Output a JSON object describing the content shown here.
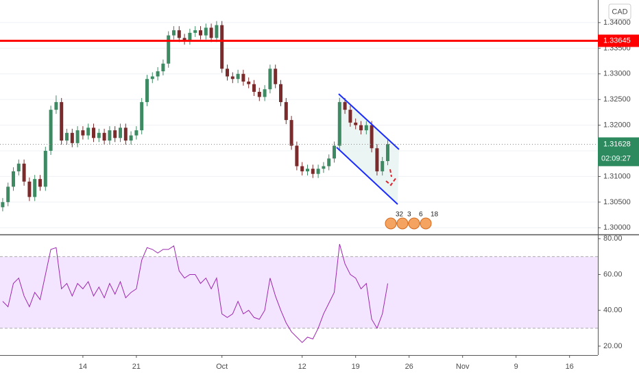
{
  "chart_data": {
    "type": "candlestick",
    "currency": "CAD",
    "categories": [
      null,
      null,
      null,
      null,
      null,
      null,
      null,
      null,
      null,
      null,
      null,
      null,
      null,
      null,
      null,
      "14",
      null,
      null,
      null,
      null,
      null,
      null,
      null,
      null,
      null,
      "21",
      null,
      null,
      null,
      null,
      null,
      null,
      null,
      null,
      null,
      null,
      null,
      null,
      null,
      null,
      null,
      "Oct",
      null,
      null,
      null,
      null,
      null,
      null,
      null,
      null,
      null,
      null,
      null,
      null,
      null,
      null,
      "12",
      null,
      null,
      null,
      null,
      null,
      null,
      null,
      null,
      null,
      "19",
      null,
      null,
      null,
      null,
      null,
      null,
      null,
      null,
      null,
      "26",
      null,
      null,
      null,
      null,
      null,
      null,
      null,
      null,
      null,
      "Nov",
      null,
      null,
      null,
      null,
      null,
      null,
      null,
      null,
      null,
      "9",
      null,
      null,
      null,
      null,
      null,
      null,
      null,
      null,
      null,
      "16",
      null,
      null,
      null,
      null,
      null
    ],
    "open": [
      1.304,
      1.305,
      1.308,
      1.311,
      1.3125,
      1.309,
      1.306,
      1.3095,
      1.308,
      1.315,
      1.323,
      1.3245,
      1.317,
      1.3185,
      1.3165,
      1.319,
      1.318,
      1.3195,
      1.3175,
      1.3185,
      1.317,
      1.319,
      1.3175,
      1.3195,
      1.317,
      1.318,
      1.319,
      1.3245,
      1.329,
      1.3295,
      1.3305,
      1.332,
      1.3375,
      1.3385,
      1.337,
      1.3365,
      1.338,
      1.3385,
      1.3375,
      1.339,
      1.337,
      1.3395,
      1.331,
      1.3295,
      1.329,
      1.33,
      1.3285,
      1.328,
      1.3265,
      1.3255,
      1.327,
      1.331,
      1.328,
      1.3245,
      1.321,
      1.316,
      1.312,
      1.311,
      1.3115,
      1.3105,
      1.3115,
      1.312,
      1.3135,
      1.316,
      1.3245,
      1.323,
      1.3205,
      1.32,
      1.319,
      1.32,
      1.3155,
      1.311,
      1.313,
      null,
      null,
      null,
      null,
      null,
      null,
      null,
      null,
      null,
      null,
      null,
      null,
      null,
      null,
      null,
      null,
      null,
      null,
      null,
      null,
      null,
      null,
      null,
      null,
      null,
      null,
      null,
      null,
      null,
      null,
      null,
      null,
      null,
      null,
      null,
      null,
      null,
      null,
      null
    ],
    "high": [
      1.3058,
      1.3088,
      1.3118,
      1.3133,
      1.3133,
      1.3098,
      1.3103,
      1.3103,
      1.3158,
      1.3238,
      1.3258,
      1.3253,
      1.3193,
      1.3193,
      1.3198,
      1.3198,
      1.3203,
      1.3203,
      1.3193,
      1.3193,
      1.3198,
      1.3198,
      1.3203,
      1.3203,
      1.3188,
      1.3198,
      1.3253,
      1.3298,
      1.3303,
      1.3313,
      1.3328,
      1.3383,
      1.3393,
      1.3393,
      1.3378,
      1.3388,
      1.3393,
      1.3393,
      1.3398,
      1.3398,
      1.3403,
      1.3403,
      1.3318,
      1.3303,
      1.3308,
      1.3308,
      1.3293,
      1.3288,
      1.3273,
      1.3278,
      1.3318,
      1.3318,
      1.3288,
      1.3253,
      1.3218,
      1.3168,
      1.3128,
      1.3123,
      1.3123,
      1.3123,
      1.3128,
      1.3143,
      1.3168,
      1.3253,
      1.3253,
      1.3238,
      1.3213,
      1.3208,
      1.3208,
      1.3208,
      1.3163,
      1.3138,
      1.3171,
      null,
      null,
      null,
      null,
      null,
      null,
      null,
      null,
      null,
      null,
      null,
      null,
      null,
      null,
      null,
      null,
      null,
      null,
      null,
      null,
      null,
      null,
      null,
      null,
      null,
      null,
      null,
      null,
      null,
      null,
      null,
      null,
      null,
      null,
      null,
      null,
      null,
      null,
      null
    ],
    "low": [
      1.3032,
      1.3042,
      1.3072,
      1.3102,
      1.3082,
      1.3052,
      1.3052,
      1.3072,
      1.3072,
      1.3142,
      1.3222,
      1.3162,
      1.3162,
      1.3157,
      1.3157,
      1.3172,
      1.3172,
      1.3167,
      1.3167,
      1.3162,
      1.3162,
      1.3167,
      1.3167,
      1.3162,
      1.3162,
      1.3172,
      1.3182,
      1.3237,
      1.3282,
      1.3287,
      1.3297,
      1.3312,
      1.3367,
      1.3362,
      1.3357,
      1.3357,
      1.3372,
      1.3367,
      1.3367,
      1.3362,
      1.3362,
      1.3302,
      1.3287,
      1.3282,
      1.3282,
      1.3277,
      1.3272,
      1.3257,
      1.3247,
      1.3247,
      1.3262,
      1.3272,
      1.3237,
      1.3202,
      1.3152,
      1.3112,
      1.3102,
      1.3102,
      1.3097,
      1.3097,
      1.3107,
      1.3112,
      1.3127,
      1.3152,
      1.3222,
      1.3197,
      1.3192,
      1.3182,
      1.3182,
      1.3147,
      1.3102,
      1.3102,
      1.3122,
      null,
      null,
      null,
      null,
      null,
      null,
      null,
      null,
      null,
      null,
      null,
      null,
      null,
      null,
      null,
      null,
      null,
      null,
      null,
      null,
      null,
      null,
      null,
      null,
      null,
      null,
      null,
      null,
      null,
      null,
      null,
      null,
      null,
      null,
      null,
      null,
      null,
      null,
      null
    ],
    "close": [
      1.305,
      1.308,
      1.311,
      1.3125,
      1.309,
      1.306,
      1.3095,
      1.308,
      1.315,
      1.323,
      1.3245,
      1.317,
      1.3185,
      1.3165,
      1.319,
      1.318,
      1.3195,
      1.3175,
      1.3185,
      1.317,
      1.319,
      1.3175,
      1.3195,
      1.317,
      1.318,
      1.319,
      1.3245,
      1.329,
      1.3295,
      1.3305,
      1.332,
      1.3375,
      1.3385,
      1.337,
      1.3365,
      1.338,
      1.3385,
      1.3375,
      1.339,
      1.337,
      1.3395,
      1.331,
      1.3295,
      1.329,
      1.33,
      1.3285,
      1.328,
      1.3265,
      1.3255,
      1.327,
      1.331,
      1.328,
      1.3245,
      1.321,
      1.316,
      1.312,
      1.311,
      1.3115,
      1.3105,
      1.3115,
      1.312,
      1.3135,
      1.316,
      1.3245,
      1.323,
      1.3205,
      1.32,
      1.319,
      1.32,
      1.3155,
      1.311,
      1.313,
      1.3163,
      null,
      null,
      null,
      null,
      null,
      null,
      null,
      null,
      null,
      null,
      null,
      null,
      null,
      null,
      null,
      null,
      null,
      null,
      null,
      null,
      null,
      null,
      null,
      null,
      null,
      null,
      null,
      null,
      null,
      null,
      null,
      null,
      null,
      null,
      null,
      null,
      null,
      null,
      null
    ],
    "up_color": "#3d8a63",
    "down_color": "#7b2b2b",
    "ylim": [
      1.2987,
      1.3444
    ],
    "yticks": [
      {
        "value": 1.3,
        "label": "1.30000"
      },
      {
        "value": 1.305,
        "label": "1.30500"
      },
      {
        "value": 1.31,
        "label": "1.31000"
      },
      {
        "value": 1.315,
        "label": "1.31500"
      },
      {
        "value": 1.32,
        "label": "1.32000"
      },
      {
        "value": 1.325,
        "label": "1.32500"
      },
      {
        "value": 1.33,
        "label": "1.33000"
      },
      {
        "value": 1.335,
        "label": "1.33500"
      },
      {
        "value": 1.34,
        "label": "1.34000"
      }
    ],
    "grid": true,
    "level_line": {
      "value": 1.33645,
      "color": "#ff0000"
    },
    "last_price": {
      "value": 1.31628,
      "countdown": "02:09:27",
      "color": "#2d8a5f"
    },
    "events": [
      "32",
      "3",
      "6",
      "18"
    ],
    "rsi": {
      "values": [
        45,
        42,
        55,
        58,
        48,
        42,
        50,
        46,
        60,
        74,
        75,
        52,
        55,
        48,
        55,
        52,
        56,
        48,
        53,
        47,
        55,
        49,
        56,
        47,
        50,
        52,
        68,
        75,
        74,
        72,
        74,
        74,
        76,
        62,
        58,
        60,
        60,
        55,
        58,
        52,
        58,
        38,
        36,
        38,
        45,
        38,
        40,
        36,
        35,
        40,
        58,
        48,
        40,
        33,
        28,
        25,
        22,
        25,
        24,
        30,
        38,
        44,
        50,
        77,
        66,
        60,
        58,
        52,
        55,
        35,
        30,
        38,
        55,
        null,
        null,
        null,
        null,
        null,
        null,
        null,
        null,
        null,
        null,
        null,
        null,
        null,
        null,
        null,
        null,
        null,
        null,
        null,
        null,
        null,
        null,
        null,
        null,
        null,
        null,
        null,
        null,
        null,
        null,
        null,
        null,
        null,
        null,
        null,
        null,
        null,
        null,
        null
      ],
      "color": "#9c27b0",
      "band": [
        30,
        70
      ],
      "band_color": "#f3e5ff",
      "ylim": [
        15,
        82
      ],
      "yticks": [
        {
          "value": 20,
          "label": "20.00"
        },
        {
          "value": 40,
          "label": "40.00"
        },
        {
          "value": 60,
          "label": "60.00"
        },
        {
          "value": 80,
          "label": "80.00"
        }
      ]
    }
  }
}
